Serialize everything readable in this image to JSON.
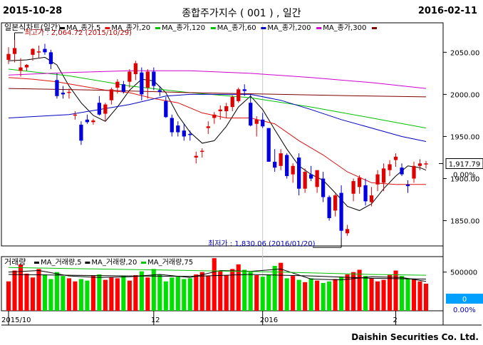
{
  "header": {
    "start_date": "2015-10-28",
    "title": "종합주가지수 ( 001 ) , 일간",
    "end_date": "2016-02-11"
  },
  "footer": {
    "company": "Daishin Securities Co. Ltd."
  },
  "chart_data": [
    {
      "type": "candlestick",
      "title": "일본식차트(일간)",
      "legend": [
        {
          "name": "MA_종가,5",
          "color": "#000000"
        },
        {
          "name": "MA_종가,20",
          "color": "#e01010"
        },
        {
          "name": "MA_종가,120",
          "color": "#00c000"
        },
        {
          "name": "MA_종가,60",
          "color": "#00c000"
        },
        {
          "name": "MA_종가,200",
          "color": "#0000c0"
        },
        {
          "name": "MA_종가,300",
          "color": "#d000d0"
        },
        {
          "name": "",
          "color": "#800000"
        }
      ],
      "y_ticks": [
        "2050.00",
        "2000.00",
        "1950.00",
        "1900.00",
        "1850.00"
      ],
      "ylim": [
        1820,
        2085
      ],
      "x_tick_labels": [
        "2015/10",
        "12",
        "2016",
        "2"
      ],
      "current_price": "1,917.79",
      "current_change": "0.00%",
      "high_annotation": "최고가 : 2,064.72 (2015/10/29)",
      "low_annotation": "최저가 : 1,830.06 (2016/01/20)",
      "up_color": "#e00000",
      "down_color": "#0000e0",
      "candles": [
        [
          2041,
          2056,
          2036,
          2048
        ],
        [
          2048,
          2065,
          2038,
          2055
        ],
        [
          2028,
          2043,
          2021,
          2032
        ],
        [
          2032,
          2036,
          2028,
          2035
        ],
        [
          2047,
          2055,
          2040,
          2054
        ],
        [
          2050,
          2058,
          2043,
          2051
        ],
        [
          2054,
          2060,
          2047,
          2050
        ],
        [
          2050,
          2053,
          2030,
          2036
        ],
        [
          2017,
          2025,
          1995,
          1998
        ],
        [
          2002,
          2010,
          1995,
          2000
        ],
        [
          2002,
          2007,
          1995,
          2003
        ],
        [
          1975,
          1980,
          1970,
          1976
        ],
        [
          1964,
          1968,
          1940,
          1945
        ],
        [
          1970,
          1976,
          1965,
          1967
        ],
        [
          1967,
          1971,
          1964,
          1969
        ],
        [
          1990,
          1998,
          1975,
          1976
        ],
        [
          1977,
          1990,
          1968,
          1988
        ],
        [
          1993,
          2008,
          1988,
          2006
        ],
        [
          2008,
          2018,
          2001,
          2015
        ],
        [
          2012,
          2016,
          2001,
          2003
        ],
        [
          2015,
          2030,
          2008,
          2027
        ],
        [
          2024,
          2040,
          2017,
          2037
        ],
        [
          2026,
          2032,
          1993,
          2000
        ],
        [
          2008,
          2030,
          1995,
          2027
        ],
        [
          2027,
          2032,
          2005,
          2010
        ],
        [
          2005,
          2010,
          1998,
          2003
        ],
        [
          1992,
          1997,
          1972,
          1973
        ],
        [
          1972,
          1976,
          1950,
          1955
        ],
        [
          1963,
          1968,
          1950,
          1955
        ],
        [
          1957,
          1965,
          1945,
          1950
        ],
        [
          1953,
          1957,
          1945,
          1952
        ],
        [
          1925,
          1932,
          1918,
          1927
        ],
        [
          1932,
          1936,
          1925,
          1933
        ],
        [
          1960,
          1968,
          1953,
          1962
        ],
        [
          1972,
          1979,
          1965,
          1976
        ],
        [
          1980,
          1987,
          1970,
          1982
        ],
        [
          1980,
          1990,
          1972,
          1986
        ],
        [
          1985,
          1999,
          1980,
          1997
        ],
        [
          1992,
          2008,
          1990,
          2006
        ],
        [
          2006,
          2012,
          1998,
          2004
        ],
        [
          1990,
          2000,
          1962,
          1963
        ],
        [
          1965,
          1974,
          1950,
          1970
        ],
        [
          1970,
          1978,
          1960,
          1962
        ],
        [
          1960,
          1960,
          1920,
          1920
        ],
        [
          1920,
          1935,
          1908,
          1913
        ],
        [
          1915,
          1935,
          1910,
          1930
        ],
        [
          1928,
          1930,
          1900,
          1903
        ],
        [
          1905,
          1918,
          1895,
          1915
        ],
        [
          1925,
          1930,
          1880,
          1888
        ],
        [
          1888,
          1912,
          1883,
          1908
        ],
        [
          1905,
          1915,
          1897,
          1900
        ],
        [
          1890,
          1910,
          1883,
          1910
        ],
        [
          1900,
          1908,
          1872,
          1878
        ],
        [
          1878,
          1880,
          1850,
          1853
        ],
        [
          1862,
          1882,
          1855,
          1880
        ],
        [
          1883,
          1892,
          1830,
          1838
        ],
        [
          1835,
          1845,
          1832,
          1840
        ],
        [
          1882,
          1900,
          1873,
          1897
        ],
        [
          1890,
          1904,
          1882,
          1901
        ],
        [
          1892,
          1900,
          1868,
          1873
        ],
        [
          1872,
          1890,
          1867,
          1880
        ],
        [
          1893,
          1910,
          1885,
          1905
        ],
        [
          1895,
          1918,
          1885,
          1912
        ],
        [
          1910,
          1922,
          1903,
          1917
        ],
        [
          1922,
          1930,
          1914,
          1926
        ],
        [
          1913,
          1918,
          1903,
          1905
        ],
        [
          1893,
          1898,
          1883,
          1891
        ],
        [
          1900,
          1920,
          1895,
          1915
        ],
        [
          1915,
          1923,
          1910,
          1918
        ],
        [
          1917,
          1921,
          1912,
          1918
        ]
      ],
      "ma_series": [
        {
          "name": "MA_종가,5",
          "color": "#000000",
          "points": [
            [
              0,
              2040
            ],
            [
              3,
              2041
            ],
            [
              6,
              2044
            ],
            [
              8,
              2035
            ],
            [
              10,
              2010
            ],
            [
              12,
              1990
            ],
            [
              14,
              1975
            ],
            [
              16,
              1968
            ],
            [
              18,
              1985
            ],
            [
              20,
              2005
            ],
            [
              22,
              2018
            ],
            [
              24,
              2016
            ],
            [
              26,
              2002
            ],
            [
              28,
              1975
            ],
            [
              30,
              1955
            ],
            [
              32,
              1942
            ],
            [
              34,
              1945
            ],
            [
              36,
              1962
            ],
            [
              38,
              1985
            ],
            [
              40,
              1998
            ],
            [
              42,
              1982
            ],
            [
              44,
              1958
            ],
            [
              46,
              1935
            ],
            [
              48,
              1915
            ],
            [
              50,
              1905
            ],
            [
              52,
              1898
            ],
            [
              54,
              1883
            ],
            [
              56,
              1867
            ],
            [
              58,
              1862
            ],
            [
              60,
              1870
            ],
            [
              62,
              1888
            ],
            [
              64,
              1903
            ],
            [
              66,
              1915
            ],
            [
              68,
              1913
            ],
            [
              69,
              1910
            ]
          ]
        },
        {
          "name": "MA_종가,20",
          "color": "#e01010",
          "points": [
            [
              0,
              2020
            ],
            [
              4,
              2018
            ],
            [
              8,
              2015
            ],
            [
              12,
              2010
            ],
            [
              16,
              2005
            ],
            [
              20,
              2002
            ],
            [
              24,
              1995
            ],
            [
              28,
              1990
            ],
            [
              32,
              1978
            ],
            [
              36,
              1972
            ],
            [
              40,
              1972
            ],
            [
              44,
              1965
            ],
            [
              48,
              1945
            ],
            [
              52,
              1928
            ],
            [
              56,
              1908
            ],
            [
              60,
              1895
            ],
            [
              64,
              1893
            ],
            [
              69,
              1893
            ]
          ]
        },
        {
          "name": "MA_종가,120",
          "color": "#00c000",
          "points": [
            [
              0,
              2030
            ],
            [
              10,
              2022
            ],
            [
              20,
              2010
            ],
            [
              30,
              2002
            ],
            [
              40,
              1996
            ],
            [
              50,
              1985
            ],
            [
              60,
              1972
            ],
            [
              69,
              1960
            ]
          ]
        },
        {
          "name": "MA_종가,200",
          "color": "#0000c0",
          "points": [
            [
              0,
              1972
            ],
            [
              10,
              1976
            ],
            [
              20,
              1988
            ],
            [
              26,
              1998
            ],
            [
              30,
              2000
            ],
            [
              40,
              2000
            ],
            [
              45,
              1993
            ],
            [
              50,
              1982
            ],
            [
              55,
              1970
            ],
            [
              60,
              1960
            ],
            [
              65,
              1950
            ],
            [
              69,
              1944
            ]
          ]
        },
        {
          "name": "MA_종가,300",
          "color": "#d000d0",
          "points": [
            [
              0,
              2023
            ],
            [
              10,
              2026
            ],
            [
              20,
              2028
            ],
            [
              30,
              2028
            ],
            [
              40,
              2025
            ],
            [
              50,
              2020
            ],
            [
              60,
              2014
            ],
            [
              69,
              2007
            ]
          ]
        },
        {
          "name": "",
          "color": "#800000",
          "points": [
            [
              0,
              2007
            ],
            [
              15,
              2005
            ],
            [
              30,
              2002
            ],
            [
              45,
              2000
            ],
            [
              60,
              1998
            ],
            [
              69,
              1997
            ]
          ]
        }
      ]
    },
    {
      "type": "bar",
      "title": "거래량",
      "legend": [
        {
          "name": "MA_거래량,5",
          "color": "#000000"
        },
        {
          "name": "MA_거래량,20",
          "color": "#000000"
        },
        {
          "name": "MA_거래량,75",
          "color": "#00c000"
        }
      ],
      "y_ticks": [
        "500000"
      ],
      "ylim": [
        0,
        700000
      ],
      "current_value": "0",
      "current_change": "0.00%",
      "values": [
        380000,
        520000,
        600000,
        480000,
        430000,
        540000,
        470000,
        410000,
        500000,
        450000,
        420000,
        380000,
        410000,
        390000,
        450000,
        470000,
        400000,
        430000,
        420000,
        450000,
        390000,
        460000,
        510000,
        430000,
        540000,
        470000,
        380000,
        430000,
        440000,
        410000,
        420000,
        470000,
        500000,
        450000,
        680000,
        520000,
        460000,
        540000,
        600000,
        530000,
        500000,
        460000,
        440000,
        470000,
        580000,
        620000,
        420000,
        450000,
        400000,
        370000,
        420000,
        390000,
        360000,
        380000,
        410000,
        440000,
        470000,
        500000,
        530000,
        450000,
        420000,
        380000,
        400000,
        470000,
        520000,
        450000,
        420000,
        410000,
        380000,
        350000
      ],
      "ma5": [
        [
          0,
          500000
        ],
        [
          5,
          520000
        ],
        [
          10,
          450000
        ],
        [
          15,
          430000
        ],
        [
          20,
          440000
        ],
        [
          25,
          470000
        ],
        [
          30,
          430000
        ],
        [
          35,
          520000
        ],
        [
          40,
          510000
        ],
        [
          45,
          540000
        ],
        [
          50,
          410000
        ],
        [
          55,
          400000
        ],
        [
          60,
          440000
        ],
        [
          65,
          430000
        ],
        [
          69,
          380000
        ]
      ],
      "ma20": [
        [
          0,
          470000
        ],
        [
          10,
          460000
        ],
        [
          20,
          450000
        ],
        [
          30,
          445000
        ],
        [
          40,
          470000
        ],
        [
          50,
          450000
        ],
        [
          60,
          420000
        ],
        [
          69,
          410000
        ]
      ],
      "ma75": [
        [
          0,
          560000
        ],
        [
          15,
          540000
        ],
        [
          30,
          520000
        ],
        [
          45,
          500000
        ],
        [
          60,
          470000
        ],
        [
          69,
          460000
        ]
      ]
    }
  ]
}
